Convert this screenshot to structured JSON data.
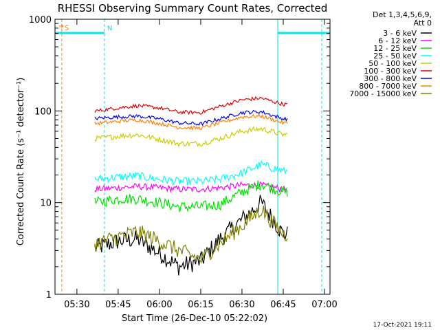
{
  "colors": {
    "background": "#ffffff",
    "axis": "#000000",
    "text": "#000000"
  },
  "chart_data": {
    "type": "line",
    "title": "RHESSI Observing Summary Count Rates, Corrected",
    "xlabel": "Start Time (26-Dec-10 05:22:02)",
    "ylabel": "Corrected Count Rate (s⁻¹ detector⁻¹)",
    "y_scale": "log",
    "ylim": [
      1,
      1000
    ],
    "xlim": [
      "05:22:02",
      "07:02:00"
    ],
    "x_ticks": [
      "05:30",
      "05:45",
      "06:00",
      "06:15",
      "06:30",
      "06:45",
      "07:00"
    ],
    "y_ticks": [
      "1",
      "10",
      "100",
      "1000"
    ],
    "legend_header": [
      "Det 1,3,4,5,6,9,",
      "Att 0"
    ],
    "legend_position": "top-right",
    "footer_timestamp": "17-Oct-2021 19:11",
    "annotations": [
      {
        "label": "S",
        "time": "05:24:30",
        "color": "#ff7f00"
      },
      {
        "label": "N",
        "time": "05:40:00",
        "color": "#00e5ee"
      }
    ],
    "night_bars": [
      {
        "start": "05:22:02",
        "end": "05:40:00",
        "color": "#00e5ee"
      },
      {
        "start": "06:43:00",
        "end": "07:02:00",
        "color": "#00e5ee"
      }
    ],
    "marker_lines": [
      {
        "time": "05:24:30",
        "color": "#ff7f00",
        "style": "dashed"
      },
      {
        "time": "05:40:00",
        "color": "#00e5ee",
        "style": "dashed"
      },
      {
        "time": "06:43:00",
        "color": "#00e5ee",
        "style": "solid"
      },
      {
        "time": "06:59:00",
        "color": "#00e5ee",
        "style": "dashed"
      }
    ],
    "data_interval": [
      "05:36:30",
      "06:46:30"
    ],
    "x": [
      "05:37",
      "05:45",
      "05:52",
      "06:00",
      "06:07",
      "06:15",
      "06:22",
      "06:30",
      "06:37",
      "06:45"
    ],
    "series": [
      {
        "name": "3 - 6 keV",
        "color": "#000000",
        "values": [
          3.2,
          3.8,
          4.0,
          2.8,
          2.0,
          2.3,
          4.0,
          6.5,
          10.0,
          4.5
        ]
      },
      {
        "name": "6 - 12 keV",
        "color": "#ff00ff",
        "values": [
          14,
          14.5,
          15,
          14.5,
          14,
          14,
          14.5,
          15.5,
          15.5,
          14
        ]
      },
      {
        "name": "12 - 25 keV",
        "color": "#00e000",
        "values": [
          10,
          11,
          11,
          10,
          9,
          9,
          9.5,
          13,
          16,
          13
        ]
      },
      {
        "name": "25 - 50 keV",
        "color": "#00ffff",
        "values": [
          18,
          19,
          19.5,
          18,
          17,
          17,
          18,
          21,
          26,
          22
        ]
      },
      {
        "name": "50 - 100 keV",
        "color": "#cccc00",
        "values": [
          50,
          53,
          55,
          49,
          44,
          44,
          50,
          60,
          64,
          55
        ]
      },
      {
        "name": "100 - 300 keV",
        "color": "#e00000",
        "values": [
          100,
          108,
          114,
          108,
          97,
          96,
          112,
          132,
          138,
          118
        ]
      },
      {
        "name": "300 - 800 keV",
        "color": "#0000ee",
        "values": [
          83,
          86,
          88,
          82,
          74,
          72,
          82,
          96,
          98,
          82
        ]
      },
      {
        "name": "800 - 7000 keV",
        "color": "#ff7f00",
        "values": [
          73,
          77,
          80,
          73,
          66,
          65,
          74,
          86,
          88,
          74
        ]
      },
      {
        "name": "7000 - 15000 keV",
        "color": "#808000",
        "values": [
          3.6,
          4.2,
          4.8,
          3.8,
          3.0,
          2.4,
          3.6,
          5.6,
          8.5,
          4.5
        ]
      }
    ]
  }
}
